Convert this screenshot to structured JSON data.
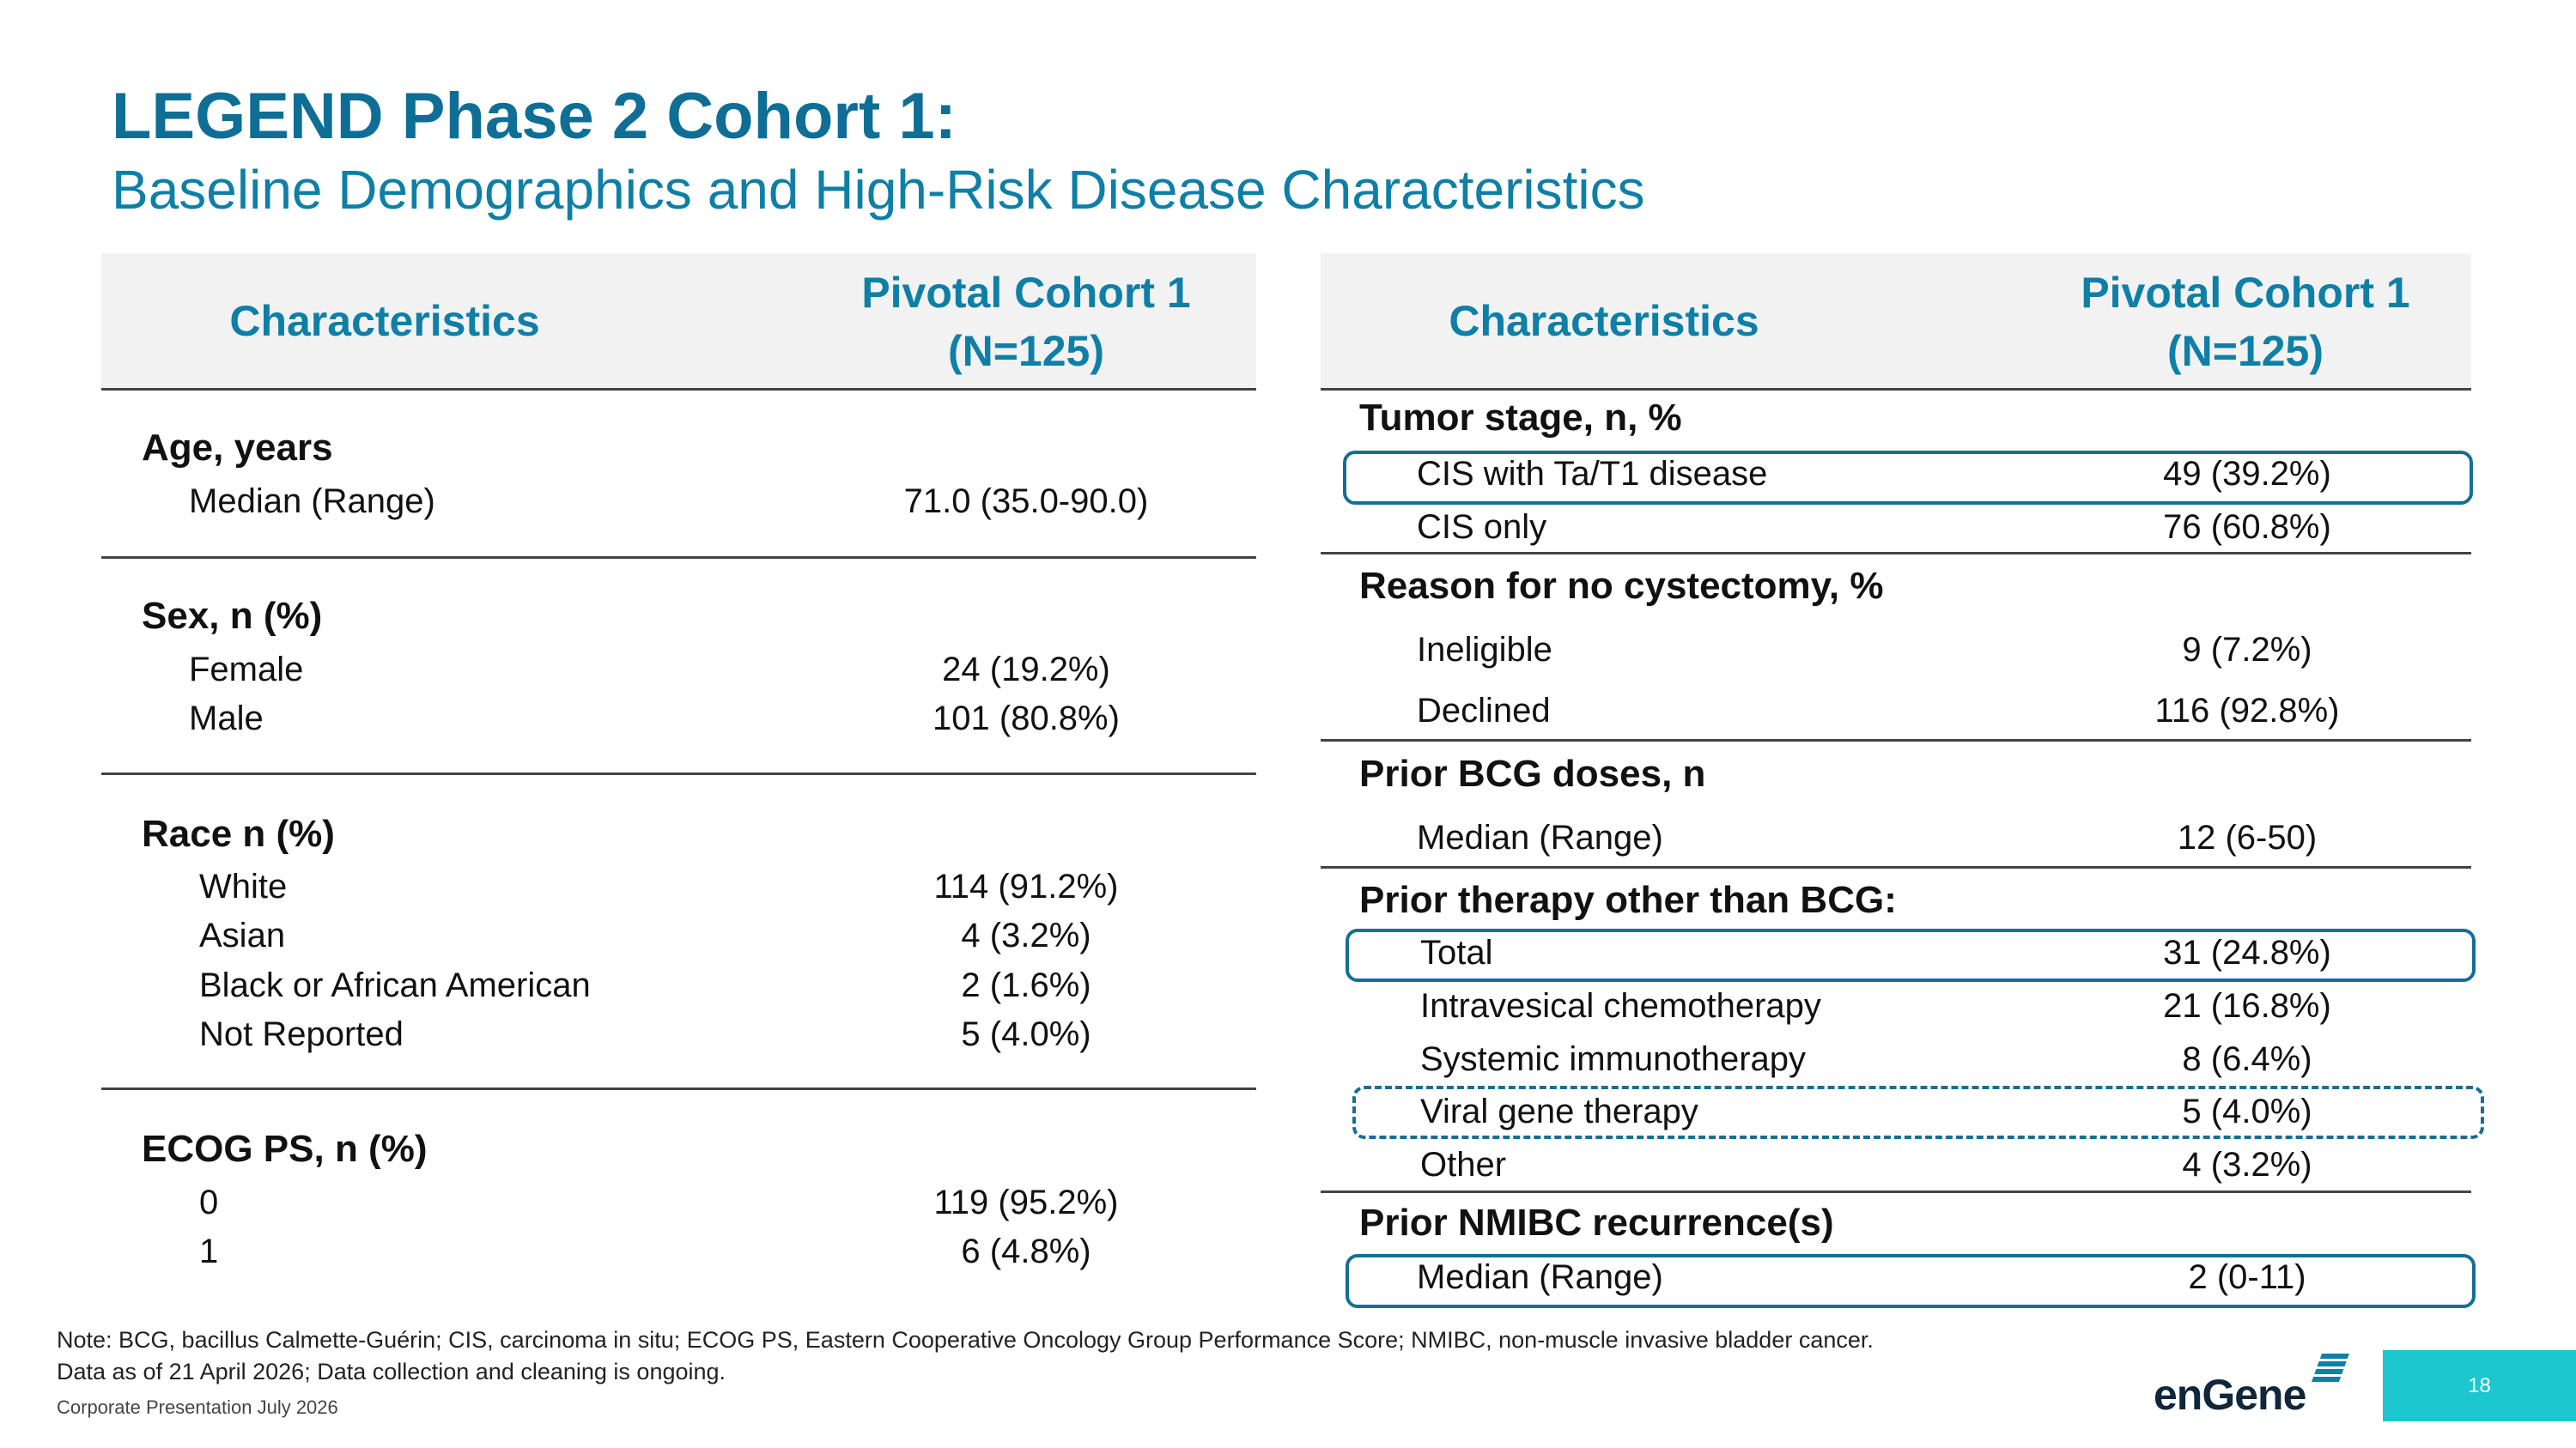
{
  "title": "LEGEND Phase 2 Cohort 1:",
  "subtitle": "Baseline Demographics and High-Risk Disease Characteristics",
  "left_table": {
    "header": {
      "col1": "Characteristics",
      "col2_line1": "Pivotal Cohort 1",
      "col2_line2": "(N=125)"
    },
    "sections": [
      {
        "title": "Age, years",
        "rows": [
          {
            "label": "Median (Range)",
            "value": "71.0 (35.0-90.0)"
          }
        ]
      },
      {
        "title": "Sex, n (%)",
        "rows": [
          {
            "label": "Female",
            "value": "24 (19.2%)"
          },
          {
            "label": "Male",
            "value": "101 (80.8%)"
          }
        ]
      },
      {
        "title": "Race n (%)",
        "rows": [
          {
            "label": "White",
            "value": "114 (91.2%)"
          },
          {
            "label": "Asian",
            "value": "4 (3.2%)"
          },
          {
            "label": "Black or African American",
            "value": "2 (1.6%)"
          },
          {
            "label": "Not Reported",
            "value": "5 (4.0%)"
          }
        ]
      },
      {
        "title": "ECOG PS, n (%)",
        "rows": [
          {
            "label": "0",
            "value": "119 (95.2%)"
          },
          {
            "label": "1",
            "value": "6 (4.8%)"
          }
        ]
      }
    ]
  },
  "right_table": {
    "header": {
      "col1": "Characteristics",
      "col2_line1": "Pivotal Cohort 1",
      "col2_line2": "(N=125)"
    },
    "sections": [
      {
        "title": "Tumor stage, n, %",
        "rows": [
          {
            "label": "CIS with Ta/T1 disease",
            "value": "49 (39.2%)",
            "highlight": "solid"
          },
          {
            "label": "CIS only",
            "value": "76 (60.8%)"
          }
        ]
      },
      {
        "title": "Reason for no cystectomy, %",
        "rows": [
          {
            "label": "Ineligible",
            "value": "9 (7.2%)"
          },
          {
            "label": "Declined",
            "value": "116 (92.8%)"
          }
        ]
      },
      {
        "title": "Prior BCG doses, n",
        "rows": [
          {
            "label": "Median (Range)",
            "value": "12 (6-50)"
          }
        ]
      },
      {
        "title": "Prior therapy other than BCG:",
        "rows": [
          {
            "label": "Total",
            "value": "31 (24.8%)",
            "highlight": "solid"
          },
          {
            "label": "Intravesical chemotherapy",
            "value": "21 (16.8%)"
          },
          {
            "label": "Systemic immunotherapy",
            "value": "8 (6.4%)"
          },
          {
            "label": "Viral gene therapy",
            "value": "5 (4.0%)",
            "highlight": "dashed"
          },
          {
            "label": "Other",
            "value": "4 (3.2%)"
          }
        ]
      },
      {
        "title": "Prior NMIBC recurrence(s)",
        "rows": [
          {
            "label": "Median (Range)",
            "value": "2 (0-11)",
            "highlight": "solid"
          }
        ]
      }
    ]
  },
  "notes": {
    "line1": "Note: BCG, bacillus Calmette-Guérin; CIS, carcinoma in situ; ECOG PS, Eastern Cooperative Oncology Group Performance Score; NMIBC, non-muscle invasive bladder cancer.",
    "line2": "Data as of 21 April 2026; Data collection and cleaning is ongoing."
  },
  "footer": "Corporate Presentation July 2026",
  "page_number": "18",
  "logo": {
    "text": "enGene",
    "icon": "engene-stripes-logo-icon"
  },
  "colors": {
    "accent": "#0e7fa6",
    "title": "#0e6e96",
    "header_bg": "#f2f2f2",
    "highlight_border": "#166e96",
    "page_tab": "#1cc7cf"
  }
}
